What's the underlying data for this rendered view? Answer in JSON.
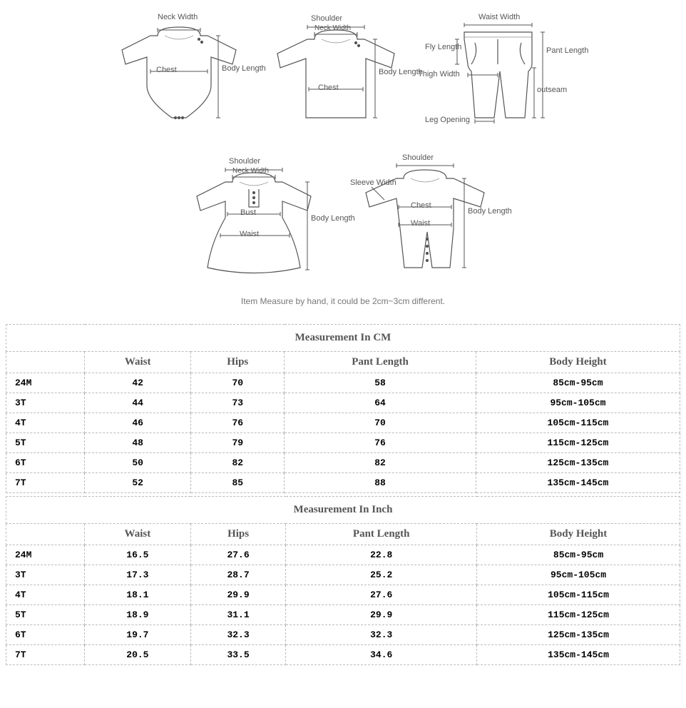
{
  "diagrams": {
    "labels": {
      "neck_width": "Neck Width",
      "shoulder": "Shoulder",
      "chest": "Chest",
      "body_length": "Body Length",
      "waist_width": "Waist Width",
      "fly_length": "Fly Length",
      "thigh_width": "Thigh Width",
      "leg_opening": "Leg Opening",
      "pant_length": "Pant Length",
      "outseam": "outseam",
      "bust": "Bust",
      "waist": "Waist",
      "sleeve_width": "Sleeve Width"
    }
  },
  "note": "Item Measure by hand, it could be 2cm~3cm different.",
  "table_cm": {
    "title": "Measurement In CM",
    "columns": [
      "",
      "Waist",
      "Hips",
      "Pant Length",
      "Body Height"
    ],
    "rows": [
      [
        "24M",
        "42",
        "70",
        "58",
        "85cm-95cm"
      ],
      [
        "3T",
        "44",
        "73",
        "64",
        "95cm-105cm"
      ],
      [
        "4T",
        "46",
        "76",
        "70",
        "105cm-115cm"
      ],
      [
        "5T",
        "48",
        "79",
        "76",
        "115cm-125cm"
      ],
      [
        "6T",
        "50",
        "82",
        "82",
        "125cm-135cm"
      ],
      [
        "7T",
        "52",
        "85",
        "88",
        "135cm-145cm"
      ]
    ]
  },
  "table_inch": {
    "title": "Measurement In Inch",
    "columns": [
      "",
      "Waist",
      "Hips",
      "Pant Length",
      "Body Height"
    ],
    "rows": [
      [
        "24M",
        "16.5",
        "27.6",
        "22.8",
        "85cm-95cm"
      ],
      [
        "3T",
        "17.3",
        "28.7",
        "25.2",
        "95cm-105cm"
      ],
      [
        "4T",
        "18.1",
        "29.9",
        "27.6",
        "105cm-115cm"
      ],
      [
        "5T",
        "18.9",
        "31.1",
        "29.9",
        "115cm-125cm"
      ],
      [
        "6T",
        "19.7",
        "32.3",
        "32.3",
        "125cm-135cm"
      ],
      [
        "7T",
        "20.5",
        "33.5",
        "34.6",
        "135cm-145cm"
      ]
    ]
  }
}
